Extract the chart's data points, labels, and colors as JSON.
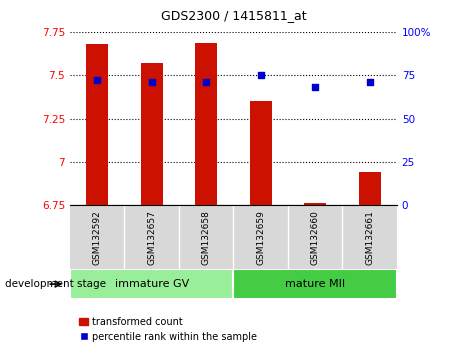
{
  "title": "GDS2300 / 1415811_at",
  "samples": [
    "GSM132592",
    "GSM132657",
    "GSM132658",
    "GSM132659",
    "GSM132660",
    "GSM132661"
  ],
  "red_values": [
    7.68,
    7.57,
    7.685,
    7.35,
    6.762,
    6.94
  ],
  "blue_values": [
    72,
    71,
    71,
    75,
    68,
    71
  ],
  "ylim_left": [
    6.75,
    7.75
  ],
  "yticks_left": [
    6.75,
    7.0,
    7.25,
    7.5,
    7.75
  ],
  "ytick_labels_left": [
    "6.75",
    "7",
    "7.25",
    "7.5",
    "7.75"
  ],
  "ytick_labels_right": [
    "0",
    "25",
    "50",
    "75",
    "100%"
  ],
  "groups": [
    {
      "label": "immature GV",
      "start": 0,
      "end": 3,
      "color": "#99ee99"
    },
    {
      "label": "mature MII",
      "start": 3,
      "end": 6,
      "color": "#44cc44"
    }
  ],
  "group_label": "development stage",
  "bar_color": "#cc1100",
  "dot_color": "#0000cc",
  "bar_bottom": 6.75,
  "legend_red": "transformed count",
  "legend_blue": "percentile rank within the sample",
  "bg_color": "#d8d8d8",
  "plot_bg": "#ffffff"
}
